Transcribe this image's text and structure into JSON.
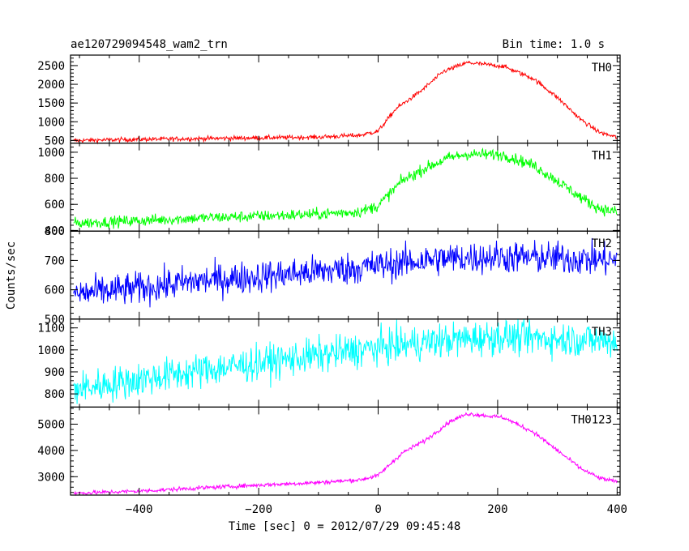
{
  "header": {
    "title": "ae120729094548_wam2_trn",
    "bin_time": "Bin time: 1.0 s"
  },
  "axes": {
    "ylabel": "Counts/sec",
    "xlabel": "Time [sec] 0 = 2012/07/29 09:45:48",
    "x_ticks": [
      "−400",
      "−200",
      "0",
      "200",
      "400"
    ]
  },
  "chart_data": {
    "type": "line",
    "x_range": [
      -515,
      405
    ],
    "x_major_ticks": [
      -400,
      -200,
      0,
      200,
      400
    ],
    "bin_time_s": 1.0,
    "panels": [
      {
        "name": "TH0",
        "color": "#ff0000",
        "ylim": [
          430,
          2780
        ],
        "y_ticks": [
          500,
          1000,
          1500,
          2000,
          2500
        ],
        "y_tick_labels": [
          "500",
          "1000",
          "1500",
          "2000",
          "2500"
        ],
        "noise": 30,
        "profile": [
          [
            -510,
            500
          ],
          [
            -400,
            530
          ],
          [
            -300,
            550
          ],
          [
            -200,
            570
          ],
          [
            -100,
            590
          ],
          [
            -30,
            640
          ],
          [
            0,
            750
          ],
          [
            30,
            1350
          ],
          [
            70,
            1800
          ],
          [
            110,
            2350
          ],
          [
            150,
            2580
          ],
          [
            210,
            2480
          ],
          [
            260,
            2150
          ],
          [
            300,
            1650
          ],
          [
            340,
            1050
          ],
          [
            370,
            720
          ],
          [
            400,
            580
          ]
        ]
      },
      {
        "name": "TH1",
        "color": "#00ff00",
        "ylim": [
          395,
          1070
        ],
        "y_ticks": [
          400,
          600,
          800,
          1000
        ],
        "y_tick_labels": [
          "400",
          "600",
          "800",
          "1000"
        ],
        "noise": 22,
        "profile": [
          [
            -510,
            455
          ],
          [
            -400,
            475
          ],
          [
            -300,
            495
          ],
          [
            -200,
            510
          ],
          [
            -100,
            525
          ],
          [
            -30,
            545
          ],
          [
            0,
            590
          ],
          [
            40,
            780
          ],
          [
            80,
            880
          ],
          [
            120,
            960
          ],
          [
            150,
            985
          ],
          [
            210,
            980
          ],
          [
            260,
            900
          ],
          [
            300,
            780
          ],
          [
            340,
            650
          ],
          [
            370,
            570
          ],
          [
            400,
            540
          ]
        ]
      },
      {
        "name": "TH2",
        "color": "#0000ff",
        "ylim": [
          500,
          800
        ],
        "y_ticks": [
          500,
          600,
          700,
          800
        ],
        "y_tick_labels": [
          "500",
          "600",
          "700",
          "800"
        ],
        "noise": 28,
        "profile": [
          [
            -510,
            585
          ],
          [
            -400,
            605
          ],
          [
            -300,
            630
          ],
          [
            -200,
            645
          ],
          [
            -100,
            662
          ],
          [
            0,
            682
          ],
          [
            100,
            705
          ],
          [
            200,
            712
          ],
          [
            300,
            708
          ],
          [
            400,
            700
          ]
        ]
      },
      {
        "name": "TH3",
        "color": "#00ffff",
        "ylim": [
          740,
          1140
        ],
        "y_ticks": [
          800,
          900,
          1000,
          1100
        ],
        "y_tick_labels": [
          "800",
          "900",
          "1000",
          "1100"
        ],
        "noise": 40,
        "profile": [
          [
            -510,
            820
          ],
          [
            -400,
            865
          ],
          [
            -300,
            905
          ],
          [
            -200,
            940
          ],
          [
            -100,
            975
          ],
          [
            0,
            1010
          ],
          [
            100,
            1040
          ],
          [
            200,
            1060
          ],
          [
            300,
            1050
          ],
          [
            400,
            1040
          ]
        ]
      },
      {
        "name": "TH0123",
        "color": "#ff00ff",
        "ylim": [
          2300,
          5650
        ],
        "y_ticks": [
          3000,
          4000,
          5000
        ],
        "y_tick_labels": [
          "3000",
          "4000",
          "5000"
        ],
        "noise": 40,
        "profile": [
          [
            -510,
            2370
          ],
          [
            -400,
            2450
          ],
          [
            -300,
            2570
          ],
          [
            -200,
            2680
          ],
          [
            -100,
            2780
          ],
          [
            -30,
            2880
          ],
          [
            0,
            3050
          ],
          [
            40,
            3900
          ],
          [
            80,
            4400
          ],
          [
            120,
            5100
          ],
          [
            150,
            5400
          ],
          [
            210,
            5250
          ],
          [
            260,
            4700
          ],
          [
            300,
            4000
          ],
          [
            340,
            3300
          ],
          [
            370,
            2950
          ],
          [
            400,
            2800
          ]
        ]
      }
    ]
  }
}
